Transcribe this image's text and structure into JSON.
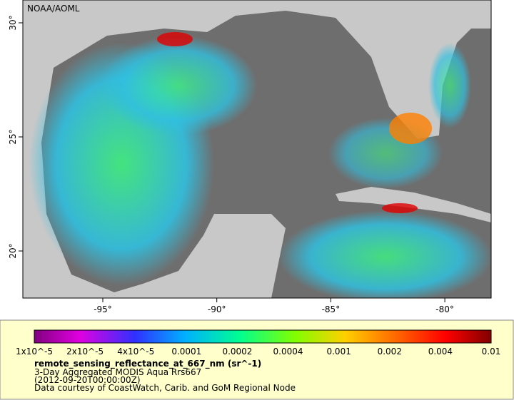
{
  "map": {
    "watermark": "NOAA/AOML",
    "lon_ticks": [
      "-95°",
      "-90°",
      "-85°",
      "-80°"
    ],
    "lat_ticks": [
      "30°",
      "25°",
      "20°"
    ]
  },
  "legend": {
    "colorbar_labels": [
      "1x10^-5",
      "2x10^-5",
      "4x10^-5",
      "0.0001",
      "0.0002",
      "0.0004",
      "0.001",
      "0.002",
      "0.004",
      "0.01"
    ],
    "variable": "remote_sensing_reflectance_at_667_nm (sr^-1)",
    "lines": [
      "3-Day Aggregated MODIS Aqua Rrs667",
      "(2012-09-20T00:00:00Z)",
      "Data courtesy of CoastWatch, Carib. and GoM Regional Node"
    ]
  }
}
